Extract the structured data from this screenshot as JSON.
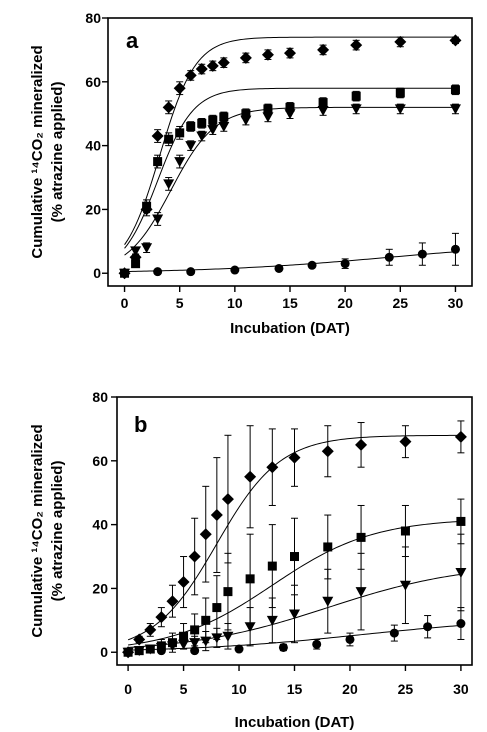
{
  "chart_data": [
    {
      "type": "scatter",
      "panel_label": "a",
      "xlabel": "Incubation (DAT)",
      "ylabel_line1": "Cumulative ¹⁴CO₂ mineralized",
      "ylabel_line2": "(% atrazine applied)",
      "xlim": [
        -1.5,
        31.5
      ],
      "ylim": [
        -4,
        80
      ],
      "xticks": [
        0,
        5,
        10,
        15,
        20,
        25,
        30
      ],
      "yticks": [
        0,
        20,
        40,
        60,
        80
      ],
      "grid": false,
      "series": [
        {
          "marker": "diamond",
          "x": [
            0,
            1,
            2,
            3,
            4,
            5,
            6,
            7,
            8,
            9,
            11,
            13,
            15,
            18,
            21,
            25,
            30
          ],
          "y": [
            0,
            5,
            20,
            43,
            52,
            58,
            62,
            64,
            65,
            66,
            67.5,
            68.5,
            69,
            70,
            71.5,
            72.5,
            73
          ],
          "err": [
            0,
            1,
            2,
            2,
            2,
            2,
            1.5,
            1.5,
            1.5,
            1.5,
            1.5,
            1.5,
            1.5,
            1.5,
            1.5,
            1.5,
            1
          ],
          "fit": {
            "A": 74,
            "k": 0.62,
            "t0": 3.2
          }
        },
        {
          "marker": "square",
          "x": [
            0,
            1,
            2,
            3,
            4,
            5,
            6,
            7,
            8,
            9,
            11,
            13,
            15,
            18,
            21,
            25,
            30
          ],
          "y": [
            0,
            3,
            21,
            35,
            42,
            44,
            46,
            47,
            48,
            49,
            50,
            51.5,
            52,
            53.5,
            55.5,
            56.5,
            57.5
          ],
          "err": [
            0,
            1,
            2,
            2,
            2,
            2,
            1.5,
            1.5,
            1.5,
            1.5,
            1.5,
            1.5,
            1.5,
            1.5,
            1.5,
            1.5,
            1.5
          ],
          "fit": {
            "A": 58,
            "k": 0.62,
            "t0": 3.0
          }
        },
        {
          "marker": "triangle-down",
          "x": [
            0,
            1,
            2,
            3,
            4,
            5,
            6,
            7,
            8,
            9,
            11,
            13,
            15,
            18,
            21,
            25,
            30
          ],
          "y": [
            0,
            7,
            8,
            17,
            28,
            35,
            40,
            43,
            45,
            46,
            48,
            49,
            50,
            51,
            51.5,
            51.5,
            51.5
          ],
          "err": [
            0,
            1,
            1.5,
            2,
            2,
            2,
            1.5,
            1.5,
            1.5,
            1.5,
            1.5,
            1.5,
            1.5,
            1.5,
            1.5,
            1.5,
            1.5
          ],
          "fit": {
            "A": 52,
            "k": 0.5,
            "t0": 4.2
          }
        },
        {
          "marker": "circle",
          "x": [
            0,
            3,
            6,
            10,
            14,
            17,
            20,
            24,
            27,
            30
          ],
          "y": [
            0,
            0.5,
            0.5,
            1,
            1.5,
            2.5,
            3,
            5,
            6,
            7.5
          ],
          "err": [
            0,
            0.3,
            0.3,
            0.3,
            0.5,
            0.5,
            1.5,
            2.5,
            3.5,
            5
          ],
          "fit": {
            "A": 10,
            "k": 0.12,
            "t0": 24
          }
        }
      ]
    },
    {
      "type": "scatter",
      "panel_label": "b",
      "xlabel": "Incubation (DAT)",
      "ylabel_line1": "Cumulative ¹⁴CO₂ mineralized",
      "ylabel_line2": "(% atrazine applied)",
      "xlim": [
        -1,
        31
      ],
      "ylim": [
        -4,
        80
      ],
      "xticks": [
        0,
        5,
        10,
        15,
        20,
        25,
        30
      ],
      "yticks": [
        0,
        20,
        40,
        60,
        80
      ],
      "grid": false,
      "series": [
        {
          "marker": "diamond",
          "x": [
            0,
            1,
            2,
            3,
            4,
            5,
            6,
            7,
            8,
            9,
            11,
            13,
            15,
            18,
            21,
            25,
            30
          ],
          "y": [
            0,
            4,
            7,
            11,
            16,
            22,
            30,
            37,
            43,
            48,
            55,
            58,
            61,
            63,
            65,
            66,
            67.5
          ],
          "err": [
            0,
            1,
            2,
            3,
            5,
            8,
            12,
            15,
            18,
            20,
            16,
            12,
            9,
            8,
            7,
            5,
            5
          ],
          "fit": {
            "A": 68,
            "k": 0.35,
            "t0": 8
          }
        },
        {
          "marker": "square",
          "x": [
            0,
            1,
            2,
            3,
            4,
            5,
            6,
            7,
            8,
            9,
            11,
            13,
            15,
            18,
            21,
            25,
            30
          ],
          "y": [
            0,
            0.5,
            1,
            2,
            3,
            5,
            7,
            10,
            14,
            19,
            23,
            27,
            30,
            33,
            36,
            38,
            41
          ],
          "err": [
            0,
            0.5,
            1,
            2,
            3,
            4,
            5,
            7,
            10,
            12,
            14,
            13,
            12,
            10,
            10,
            8,
            7
          ],
          "fit": {
            "A": 42,
            "k": 0.22,
            "t0": 13
          }
        },
        {
          "marker": "triangle-down",
          "x": [
            0,
            1,
            2,
            3,
            4,
            5,
            6,
            7,
            8,
            9,
            11,
            13,
            15,
            18,
            21,
            25,
            30
          ],
          "y": [
            0,
            0.5,
            1,
            1.5,
            2,
            2.5,
            3,
            3.5,
            4.5,
            5,
            8,
            10,
            12,
            16,
            19,
            21,
            25
          ],
          "err": [
            0,
            0.5,
            0.5,
            1,
            1,
            1.5,
            2,
            3,
            3,
            4,
            6,
            7,
            9,
            10,
            12,
            12,
            12
          ],
          "fit": {
            "A": 28,
            "k": 0.16,
            "t0": 18
          }
        },
        {
          "marker": "circle",
          "x": [
            0,
            3,
            6,
            10,
            14,
            17,
            20,
            24,
            27,
            30
          ],
          "y": [
            0,
            0.5,
            0.5,
            1,
            1.5,
            2.5,
            4,
            6,
            8,
            9
          ],
          "err": [
            0,
            0.3,
            0.3,
            0.5,
            1,
            1.5,
            2,
            2.5,
            3.5,
            5
          ],
          "fit": {
            "A": 11,
            "k": 0.13,
            "t0": 21
          }
        }
      ]
    }
  ]
}
